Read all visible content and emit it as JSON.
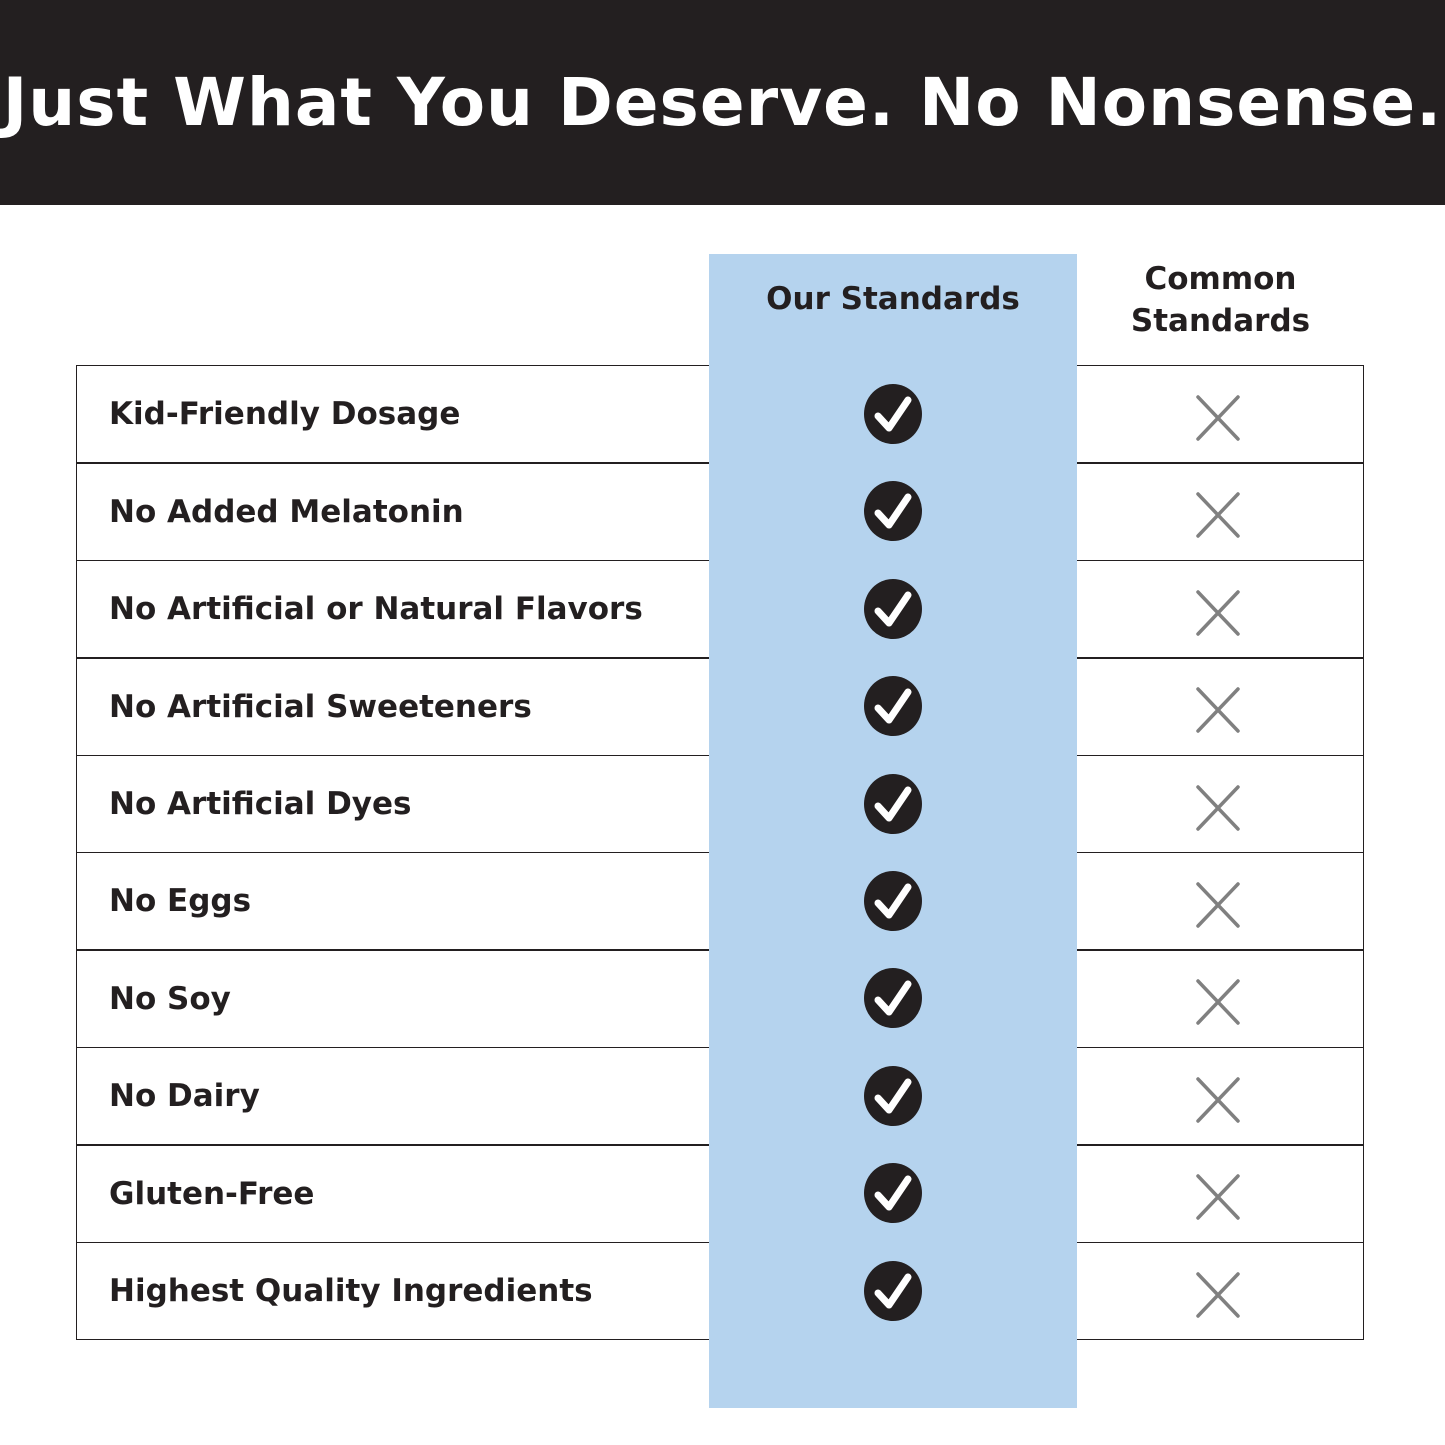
{
  "title": "Just What You Deserve. No Nonsense.",
  "columns": {
    "ours": "Our Standards",
    "common_line1": "Common",
    "common_line2": "Standards"
  },
  "colors": {
    "banner": "#231f20",
    "highlight_column": "#b5d3ee",
    "cross": "#808080"
  },
  "rows": [
    {
      "label": "Kid-Friendly Dosage",
      "ours": "check-icon",
      "common": "x-icon"
    },
    {
      "label": "No Added Melatonin",
      "ours": "check-icon",
      "common": "x-icon"
    },
    {
      "label": "No Artificial or Natural Flavors",
      "ours": "check-icon",
      "common": "x-icon"
    },
    {
      "label": "No Artificial Sweeteners",
      "ours": "check-icon",
      "common": "x-icon"
    },
    {
      "label": "No Artificial Dyes",
      "ours": "check-icon",
      "common": "x-icon"
    },
    {
      "label": "No Eggs",
      "ours": "check-icon",
      "common": "x-icon"
    },
    {
      "label": "No Soy",
      "ours": "check-icon",
      "common": "x-icon"
    },
    {
      "label": "No Dairy",
      "ours": "check-icon",
      "common": "x-icon"
    },
    {
      "label": "Gluten-Free",
      "ours": "check-icon",
      "common": "x-icon"
    },
    {
      "label": "Highest Quality Ingredients",
      "ours": "check-icon",
      "common": "x-icon"
    }
  ]
}
